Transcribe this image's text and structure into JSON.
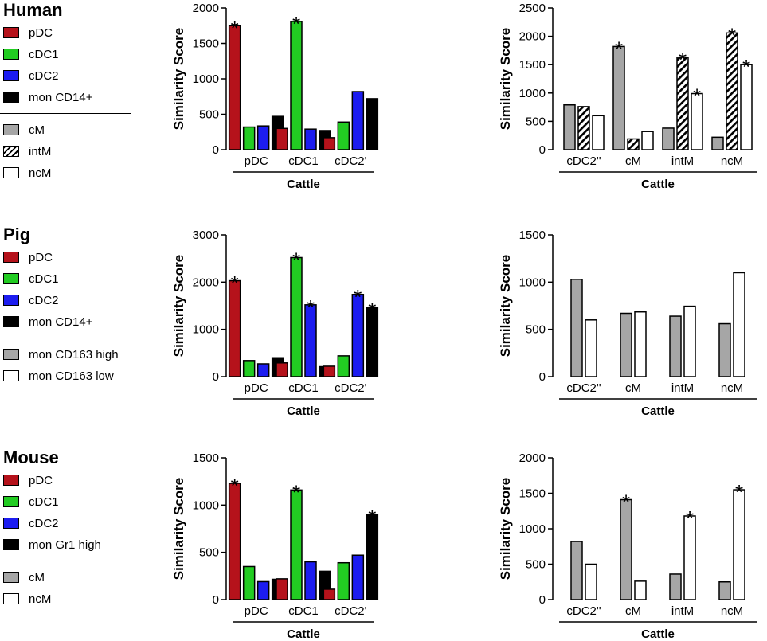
{
  "legends": [
    {
      "species": "Human",
      "group1": [
        {
          "label": "pDC",
          "color": "#b5121b"
        },
        {
          "label": "cDC1",
          "color": "#22cc22"
        },
        {
          "label": "cDC2",
          "color": "#1c1cf0"
        },
        {
          "label": "mon CD14+",
          "color": "#000000"
        }
      ],
      "group2": [
        {
          "label": "cM",
          "color": "#a6a6a6",
          "pattern": "solid"
        },
        {
          "label": "intM",
          "color": "#ffffff",
          "pattern": "hatch"
        },
        {
          "label": "ncM",
          "color": "#ffffff",
          "pattern": "solid"
        }
      ]
    },
    {
      "species": "Pig",
      "group1": [
        {
          "label": "pDC",
          "color": "#b5121b"
        },
        {
          "label": "cDC1",
          "color": "#22cc22"
        },
        {
          "label": "cDC2",
          "color": "#1c1cf0"
        },
        {
          "label": "mon CD14+",
          "color": "#000000"
        }
      ],
      "group2": [
        {
          "label": "mon CD163 high",
          "color": "#a6a6a6",
          "pattern": "solid"
        },
        {
          "label": "mon CD163 low",
          "color": "#ffffff",
          "pattern": "solid"
        }
      ]
    },
    {
      "species": "Mouse",
      "group1": [
        {
          "label": "pDC",
          "color": "#b5121b"
        },
        {
          "label": "cDC1",
          "color": "#22cc22"
        },
        {
          "label": "cDC2",
          "color": "#1c1cf0"
        },
        {
          "label": "mon Gr1 high",
          "color": "#000000"
        }
      ],
      "group2": [
        {
          "label": "cM",
          "color": "#a6a6a6",
          "pattern": "solid"
        },
        {
          "label": "ncM",
          "color": "#ffffff",
          "pattern": "solid"
        }
      ]
    }
  ],
  "chart_data": [
    {
      "id": "human-dc",
      "type": "bar",
      "ylabel": "Similarity Score",
      "xlabel": "Cattle",
      "categories": [
        "pDC",
        "cDC1",
        "cDC2'"
      ],
      "ylim": [
        0,
        2000
      ],
      "yticks": [
        "0",
        "500",
        "1000",
        "1500",
        "2000"
      ],
      "series": [
        {
          "name": "pDC",
          "color": "#b5121b",
          "pattern": "solid",
          "values": [
            1750,
            300,
            170
          ],
          "sig": [
            true,
            false,
            false
          ]
        },
        {
          "name": "cDC1",
          "color": "#22cc22",
          "pattern": "solid",
          "values": [
            320,
            1810,
            390
          ],
          "sig": [
            false,
            true,
            false
          ]
        },
        {
          "name": "cDC2",
          "color": "#1c1cf0",
          "pattern": "solid",
          "values": [
            335,
            290,
            820
          ],
          "sig": [
            false,
            false,
            false
          ]
        },
        {
          "name": "mon CD14+",
          "color": "#000000",
          "pattern": "solid",
          "values": [
            470,
            270,
            720
          ],
          "sig": [
            false,
            false,
            false
          ]
        }
      ]
    },
    {
      "id": "human-mono",
      "type": "bar",
      "ylabel": "Similarity Score",
      "xlabel": "Cattle",
      "categories": [
        "cDC2''",
        "cM",
        "intM",
        "ncM"
      ],
      "ylim": [
        0,
        2500
      ],
      "yticks": [
        "0",
        "500",
        "1000",
        "1500",
        "2000",
        "2500"
      ],
      "series": [
        {
          "name": "cM",
          "color": "#a6a6a6",
          "pattern": "solid",
          "values": [
            790,
            1820,
            380,
            220
          ],
          "sig": [
            false,
            true,
            false,
            false
          ]
        },
        {
          "name": "intM",
          "color": "#ffffff",
          "pattern": "hatch",
          "values": [
            760,
            190,
            1630,
            2060
          ],
          "sig": [
            false,
            false,
            true,
            true
          ]
        },
        {
          "name": "ncM",
          "color": "#ffffff",
          "pattern": "solid",
          "values": [
            600,
            320,
            990,
            1500
          ],
          "sig": [
            false,
            false,
            true,
            true
          ]
        }
      ]
    },
    {
      "id": "pig-dc",
      "type": "bar",
      "ylabel": "Similarity Score",
      "xlabel": "Cattle",
      "categories": [
        "pDC",
        "cDC1",
        "cDC2'"
      ],
      "ylim": [
        0,
        3000
      ],
      "yticks": [
        "0",
        "1000",
        "2000",
        "3000"
      ],
      "series": [
        {
          "name": "pDC",
          "color": "#b5121b",
          "pattern": "solid",
          "values": [
            2030,
            290,
            220
          ],
          "sig": [
            true,
            false,
            false
          ]
        },
        {
          "name": "cDC1",
          "color": "#22cc22",
          "pattern": "solid",
          "values": [
            340,
            2520,
            440
          ],
          "sig": [
            false,
            true,
            false
          ]
        },
        {
          "name": "cDC2",
          "color": "#1c1cf0",
          "pattern": "solid",
          "values": [
            270,
            1520,
            1740
          ],
          "sig": [
            false,
            true,
            true
          ]
        },
        {
          "name": "mon CD14+",
          "color": "#000000",
          "pattern": "solid",
          "values": [
            400,
            210,
            1470
          ],
          "sig": [
            false,
            false,
            true
          ]
        }
      ]
    },
    {
      "id": "pig-mono",
      "type": "bar",
      "ylabel": "Similarity Score",
      "xlabel": "Cattle",
      "categories": [
        "cDC2''",
        "cM",
        "intM",
        "ncM"
      ],
      "ylim": [
        0,
        1500
      ],
      "yticks": [
        "0",
        "500",
        "1000",
        "1500"
      ],
      "series": [
        {
          "name": "mon CD163 high",
          "color": "#a6a6a6",
          "pattern": "solid",
          "values": [
            1030,
            670,
            640,
            560
          ],
          "sig": [
            false,
            false,
            false,
            false
          ]
        },
        {
          "name": "mon CD163 low",
          "color": "#ffffff",
          "pattern": "solid",
          "values": [
            600,
            685,
            745,
            1100
          ],
          "sig": [
            false,
            false,
            false,
            false
          ]
        }
      ]
    },
    {
      "id": "mouse-dc",
      "type": "bar",
      "ylabel": "Similarity Score",
      "xlabel": "Cattle",
      "categories": [
        "pDC",
        "cDC1",
        "cDC2'"
      ],
      "ylim": [
        0,
        1500
      ],
      "yticks": [
        "0",
        "500",
        "1000",
        "1500"
      ],
      "series": [
        {
          "name": "pDC",
          "color": "#b5121b",
          "pattern": "solid",
          "values": [
            1230,
            220,
            110
          ],
          "sig": [
            true,
            false,
            false
          ]
        },
        {
          "name": "cDC1",
          "color": "#22cc22",
          "pattern": "solid",
          "values": [
            350,
            1160,
            390
          ],
          "sig": [
            false,
            true,
            false
          ]
        },
        {
          "name": "cDC2",
          "color": "#1c1cf0",
          "pattern": "solid",
          "values": [
            190,
            400,
            470
          ],
          "sig": [
            false,
            false,
            false
          ]
        },
        {
          "name": "mon Gr1 high",
          "color": "#000000",
          "pattern": "solid",
          "values": [
            215,
            300,
            900
          ],
          "sig": [
            false,
            false,
            true
          ]
        }
      ]
    },
    {
      "id": "mouse-mono",
      "type": "bar",
      "ylabel": "Similarity Score",
      "xlabel": "Cattle",
      "categories": [
        "cDC2''",
        "cM",
        "intM",
        "ncM"
      ],
      "ylim": [
        0,
        2000
      ],
      "yticks": [
        "0",
        "500",
        "1000",
        "1500",
        "2000"
      ],
      "series": [
        {
          "name": "cM",
          "color": "#a6a6a6",
          "pattern": "solid",
          "values": [
            820,
            1410,
            360,
            250
          ],
          "sig": [
            false,
            true,
            false,
            false
          ]
        },
        {
          "name": "ncM",
          "color": "#ffffff",
          "pattern": "solid",
          "values": [
            500,
            260,
            1180,
            1550
          ],
          "sig": [
            false,
            false,
            true,
            true
          ]
        }
      ]
    }
  ],
  "significance_marker": "*"
}
